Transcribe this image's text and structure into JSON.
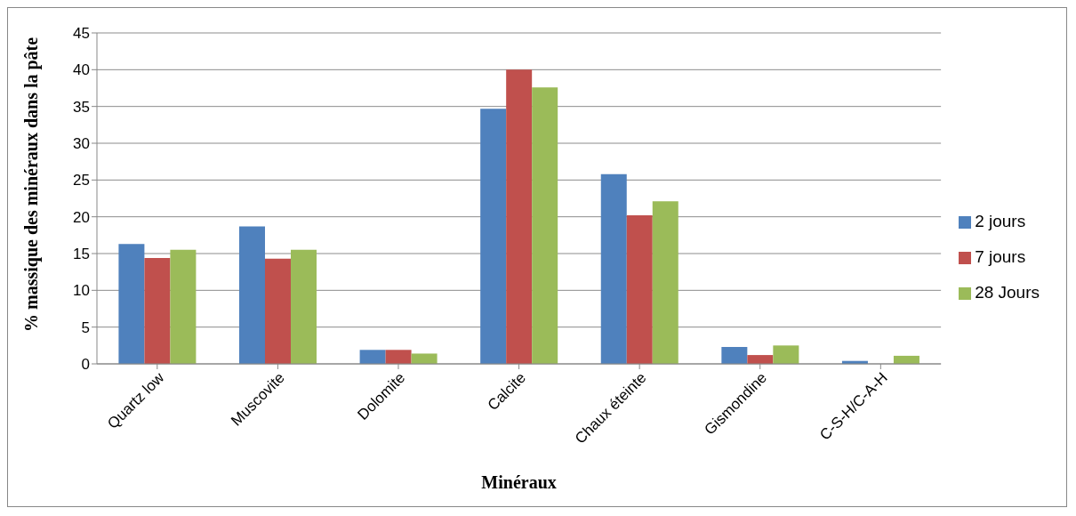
{
  "chart_data": {
    "type": "bar",
    "xlabel": "Minéraux",
    "ylabel": "% massique des minéraux dans la pâte",
    "categories": [
      "Quartz low",
      "Muscovite",
      "Dolomite",
      "Calcite",
      "Chaux éteinte",
      "Gismondine",
      "C-S-H/C-A-H"
    ],
    "series": [
      {
        "name": "2 jours",
        "color": "#4f81bd",
        "values": [
          16.3,
          18.7,
          1.9,
          34.7,
          25.8,
          2.3,
          0.4
        ]
      },
      {
        "name": "7 jours",
        "color": "#c0504d",
        "values": [
          14.4,
          14.3,
          1.9,
          40.0,
          20.2,
          1.2,
          0
        ]
      },
      {
        "name": "28 Jours",
        "color": "#9bbb59",
        "values": [
          15.5,
          15.5,
          1.4,
          37.6,
          22.1,
          2.5,
          1.1
        ]
      }
    ],
    "ylim": [
      0,
      45
    ],
    "yticks": [
      0,
      5,
      10,
      15,
      20,
      25,
      30,
      35,
      40,
      45
    ],
    "grid": "y",
    "legend": "right"
  }
}
